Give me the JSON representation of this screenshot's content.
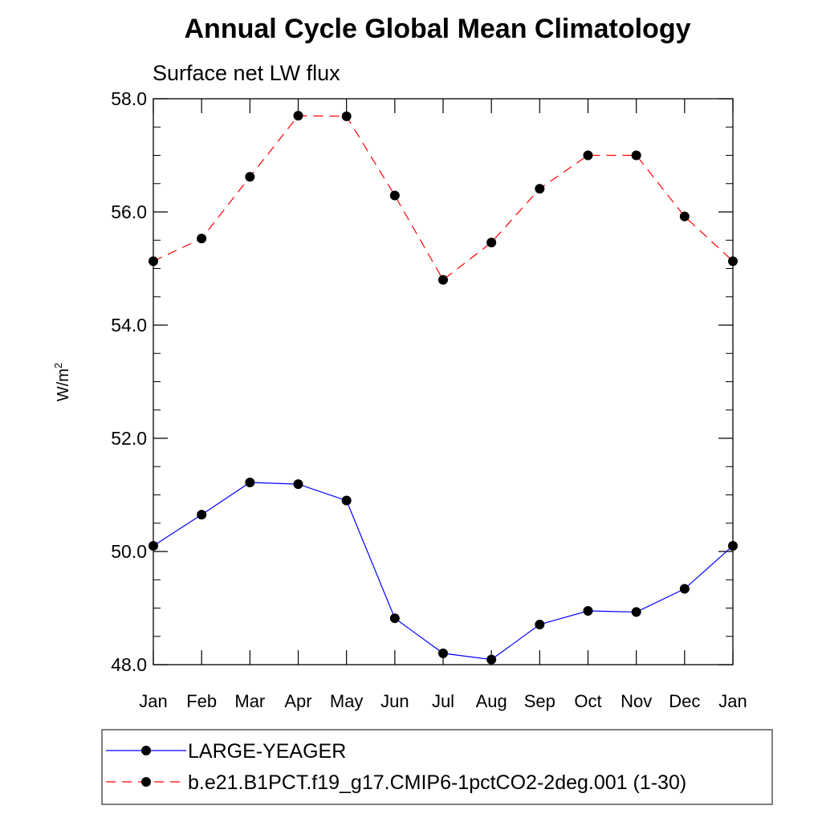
{
  "chart_data": {
    "type": "line",
    "title": "Annual Cycle Global Mean Climatology",
    "subtitle": "Surface net LW flux",
    "ylabel_base": "W/m",
    "ylabel_sup": "2",
    "xlabel": "",
    "categories": [
      "Jan",
      "Feb",
      "Mar",
      "Apr",
      "May",
      "Jun",
      "Jul",
      "Aug",
      "Sep",
      "Oct",
      "Nov",
      "Dec",
      "Jan"
    ],
    "ylim": [
      48.0,
      58.0
    ],
    "yticks": [
      48.0,
      50.0,
      52.0,
      54.0,
      56.0,
      58.0
    ],
    "ytick_labels": [
      "48.0",
      "50.0",
      "52.0",
      "54.0",
      "56.0",
      "58.0"
    ],
    "yminor_step": 0.5,
    "grid": false,
    "legend_position": "bottom",
    "series": [
      {
        "name": "LARGE-YEAGER",
        "color": "#0000ff",
        "dash": "solid",
        "values": [
          50.1,
          50.65,
          51.22,
          51.19,
          50.9,
          48.82,
          48.2,
          48.09,
          48.71,
          48.95,
          48.93,
          49.34,
          50.1
        ]
      },
      {
        "name": "b.e21.B1PCT.f19_g17.CMIP6-1pctCO2-2deg.001 (1-30)",
        "color": "#ff0000",
        "dash": "dashed",
        "values": [
          55.13,
          55.53,
          56.62,
          57.7,
          57.69,
          56.29,
          54.8,
          55.46,
          56.41,
          57.0,
          57.0,
          55.92,
          55.13
        ]
      }
    ]
  }
}
